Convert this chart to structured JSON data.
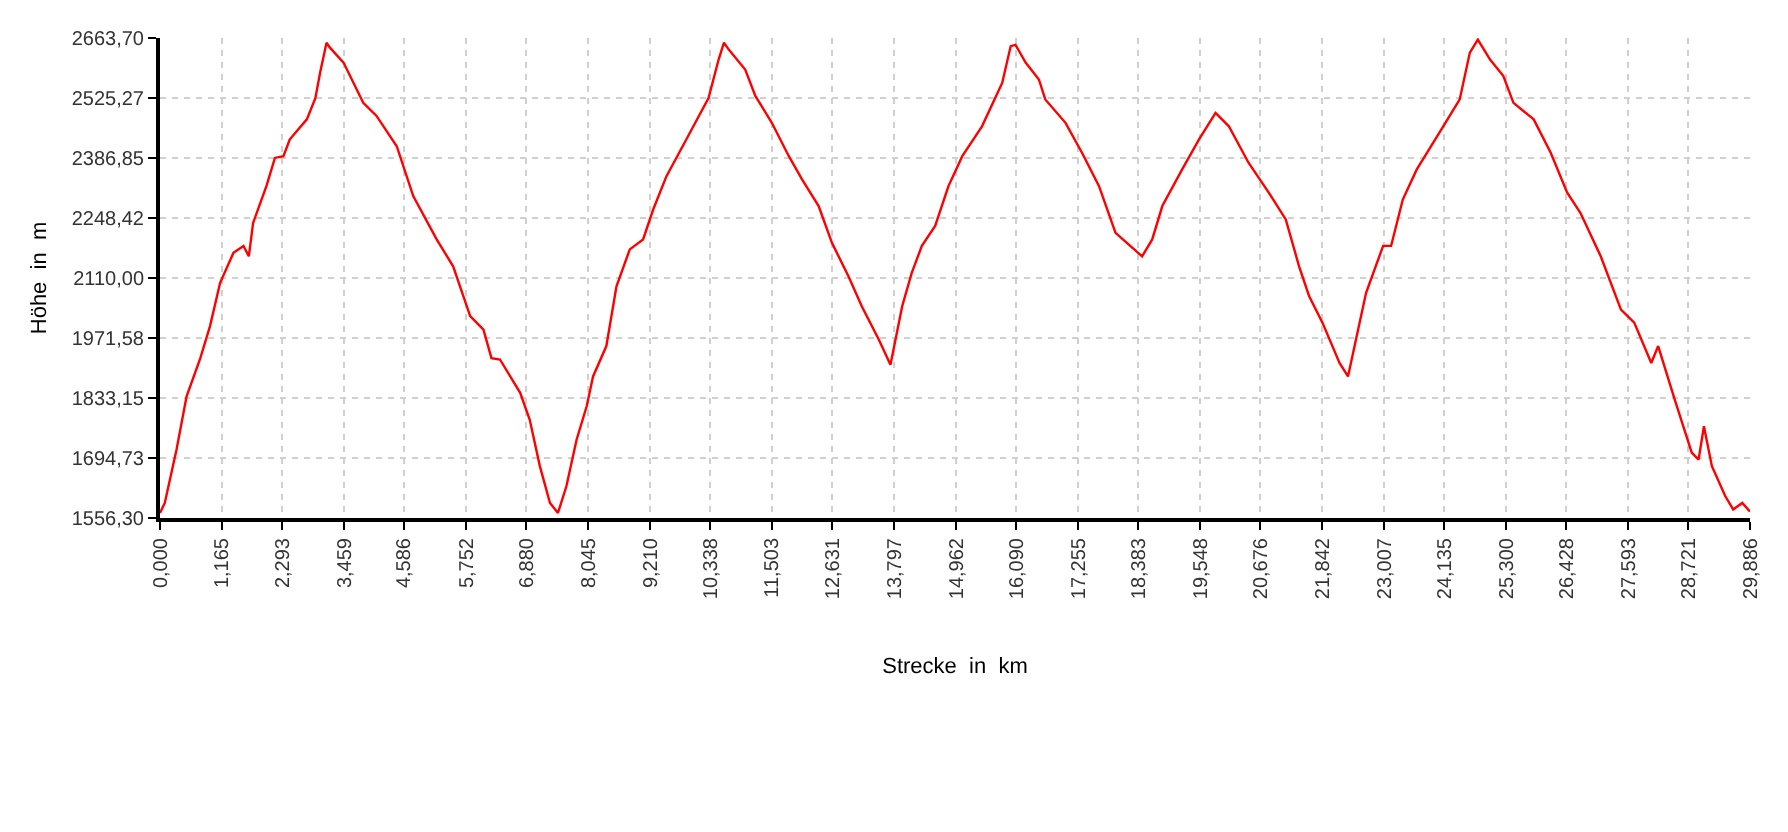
{
  "chart_data": {
    "type": "line",
    "xlabel": "Strecke  in  km",
    "ylabel": "Höhe  in  m",
    "x": [
      0,
      0.09,
      0.31,
      0.5,
      0.75,
      0.94,
      1.13,
      1.38,
      1.57,
      1.67,
      1.75,
      2.0,
      2.16,
      2.32,
      2.44,
      2.76,
      2.92,
      3.01,
      3.13,
      3.19,
      3.45,
      3.82,
      4.07,
      4.45,
      4.76,
      5.2,
      5.51,
      5.83,
      6.08,
      6.23,
      6.39,
      6.77,
      6.95,
      7.14,
      7.33,
      7.48,
      7.64,
      7.83,
      8.02,
      8.14,
      8.39,
      8.58,
      8.83,
      9.08,
      9.27,
      9.52,
      9.96,
      10.31,
      10.5,
      10.6,
      10.69,
      11.0,
      11.19,
      11.5,
      11.82,
      12.07,
      12.38,
      12.63,
      12.94,
      13.19,
      13.51,
      13.73,
      13.95,
      14.13,
      14.32,
      14.57,
      14.82,
      15.08,
      15.45,
      15.83,
      15.99,
      16.08,
      16.27,
      16.52,
      16.64,
      17.02,
      17.33,
      17.65,
      17.96,
      18.21,
      18.46,
      18.65,
      18.84,
      19.21,
      19.53,
      19.84,
      20.09,
      20.46,
      20.84,
      21.16,
      21.41,
      21.6,
      21.85,
      22.17,
      22.33,
      22.48,
      22.67,
      22.99,
      23.14,
      23.36,
      23.62,
      24.12,
      24.43,
      24.62,
      24.77,
      25.0,
      25.25,
      25.44,
      25.82,
      26.14,
      26.45,
      26.7,
      27.08,
      27.46,
      27.71,
      28.03,
      28.16,
      28.47,
      28.79,
      28.92,
      29.02,
      29.17,
      29.42,
      29.57,
      29.74,
      29.886
    ],
    "series": [
      {
        "color": "#ff0000",
        "values": [
          1568,
          1591,
          1714,
          1837,
          1922,
          1999,
          2099,
          2168,
          2184,
          2160,
          2237,
          2322,
          2387,
          2391,
          2430,
          2476,
          2525,
          2584,
          2653,
          2642,
          2607,
          2514,
          2484,
          2414,
          2299,
          2199,
          2137,
          2022,
          1991,
          1925,
          1922,
          1845,
          1783,
          1676,
          1591,
          1568,
          1630,
          1737,
          1814,
          1883,
          1953,
          2091,
          2176,
          2199,
          2268,
          2345,
          2445,
          2525,
          2614,
          2653,
          2637,
          2591,
          2530,
          2468,
          2391,
          2337,
          2276,
          2191,
          2114,
          2045,
          1968,
          1910,
          2045,
          2122,
          2184,
          2230,
          2322,
          2391,
          2460,
          2560,
          2645,
          2648,
          2607,
          2568,
          2522,
          2468,
          2399,
          2322,
          2214,
          2187,
          2160,
          2199,
          2276,
          2360,
          2430,
          2491,
          2460,
          2376,
          2307,
          2245,
          2137,
          2068,
          2007,
          1914,
          1883,
          1968,
          2076,
          2184,
          2184,
          2291,
          2360,
          2460,
          2522,
          2630,
          2660,
          2614,
          2576,
          2514,
          2476,
          2399,
          2307,
          2260,
          2160,
          2037,
          2007,
          1914,
          1953,
          1830,
          1707,
          1691,
          1768,
          1676,
          1607,
          1576,
          1591,
          1571
        ]
      }
    ],
    "xlim": [
      0,
      29.886
    ],
    "ylim": [
      1556.3,
      2663.7
    ],
    "xticks": [
      {
        "value": 0,
        "label": "0,000"
      },
      {
        "value": 1.165,
        "label": "1,165"
      },
      {
        "value": 2.293,
        "label": "2,293"
      },
      {
        "value": 3.459,
        "label": "3,459"
      },
      {
        "value": 4.586,
        "label": "4,586"
      },
      {
        "value": 5.752,
        "label": "5,752"
      },
      {
        "value": 6.88,
        "label": "6,880"
      },
      {
        "value": 8.045,
        "label": "8,045"
      },
      {
        "value": 9.21,
        "label": "9,210"
      },
      {
        "value": 10.338,
        "label": "10,338"
      },
      {
        "value": 11.503,
        "label": "11,503"
      },
      {
        "value": 12.631,
        "label": "12,631"
      },
      {
        "value": 13.797,
        "label": "13,797"
      },
      {
        "value": 14.962,
        "label": "14,962"
      },
      {
        "value": 16.09,
        "label": "16,090"
      },
      {
        "value": 17.255,
        "label": "17,255"
      },
      {
        "value": 18.383,
        "label": "18,383"
      },
      {
        "value": 19.548,
        "label": "19,548"
      },
      {
        "value": 20.676,
        "label": "20,676"
      },
      {
        "value": 21.842,
        "label": "21,842"
      },
      {
        "value": 23.007,
        "label": "23,007"
      },
      {
        "value": 24.135,
        "label": "24,135"
      },
      {
        "value": 25.3,
        "label": "25,300"
      },
      {
        "value": 26.428,
        "label": "26,428"
      },
      {
        "value": 27.593,
        "label": "27,593"
      },
      {
        "value": 28.721,
        "label": "28,721"
      },
      {
        "value": 29.886,
        "label": "29,886"
      }
    ],
    "yticks": [
      {
        "value": 1556.3,
        "label": "1556,30"
      },
      {
        "value": 1694.73,
        "label": "1694,73"
      },
      {
        "value": 1833.15,
        "label": "1833,15"
      },
      {
        "value": 1971.58,
        "label": "1971,58"
      },
      {
        "value": 2110.0,
        "label": "2110,00"
      },
      {
        "value": 2248.42,
        "label": "2248,42"
      },
      {
        "value": 2386.85,
        "label": "2386,85"
      },
      {
        "value": 2525.27,
        "label": "2525,27"
      },
      {
        "value": 2663.7,
        "label": "2663,70"
      }
    ],
    "grid": true,
    "marker": "none",
    "line_style": "solid"
  }
}
